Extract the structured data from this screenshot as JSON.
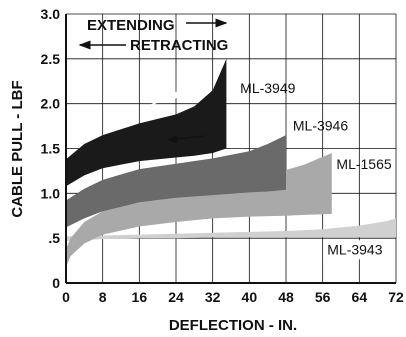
{
  "chart_data": {
    "type": "area",
    "title": "",
    "xlabel": "DEFLECTION - IN.",
    "ylabel": "CABLE PULL - LBF",
    "xlim": [
      0,
      72
    ],
    "ylim": [
      0,
      3.0
    ],
    "x_ticks": [
      0,
      8,
      16,
      24,
      32,
      40,
      48,
      56,
      64,
      72
    ],
    "x_tick_labels": [
      "0",
      "8",
      "16",
      "24",
      "32",
      "40",
      "48",
      "56",
      "64",
      "72"
    ],
    "y_ticks": [
      0,
      0.5,
      1.0,
      1.5,
      2.0,
      2.5,
      3.0
    ],
    "y_tick_labels": [
      "0",
      ".5",
      "1.0",
      "1.5",
      "2.0",
      "2.5",
      "3.0"
    ],
    "grid": true,
    "legend": "direct labels",
    "annotations": [
      "EXTENDING",
      "RETRACTING"
    ],
    "series": [
      {
        "name": "ML-3943",
        "color": "#d0d0d0",
        "x": [
          0,
          8,
          16,
          24,
          32,
          40,
          48,
          56,
          64,
          70,
          72
        ],
        "upper": [
          0.52,
          0.53,
          0.54,
          0.55,
          0.56,
          0.57,
          0.58,
          0.6,
          0.64,
          0.69,
          0.72
        ],
        "lower": [
          0.47,
          0.49,
          0.5,
          0.5,
          0.51,
          0.51,
          0.51,
          0.51,
          0.51,
          0.51,
          0.51
        ]
      },
      {
        "name": "ML-1565",
        "color": "#a9a9a9",
        "x": [
          0,
          1,
          4,
          8,
          16,
          24,
          32,
          40,
          48,
          52,
          58
        ],
        "upper": [
          0.38,
          0.5,
          0.68,
          0.8,
          0.95,
          1.03,
          1.1,
          1.17,
          1.26,
          1.32,
          1.45
        ],
        "lower": [
          0.18,
          0.3,
          0.44,
          0.54,
          0.63,
          0.68,
          0.72,
          0.74,
          0.75,
          0.76,
          0.77
        ]
      },
      {
        "name": "ML-3946",
        "color": "#6a6a6a",
        "x": [
          0,
          4,
          8,
          16,
          24,
          32,
          40,
          44,
          48
        ],
        "upper": [
          0.92,
          1.05,
          1.15,
          1.27,
          1.33,
          1.39,
          1.47,
          1.55,
          1.65
        ],
        "lower": [
          0.62,
          0.72,
          0.8,
          0.9,
          0.95,
          0.98,
          1.01,
          1.02,
          1.04
        ]
      },
      {
        "name": "ML-3949",
        "color": "#1a1a1a",
        "x": [
          0,
          4,
          8,
          16,
          24,
          28,
          32,
          35
        ],
        "upper": [
          1.38,
          1.55,
          1.65,
          1.78,
          1.88,
          1.97,
          2.15,
          2.5
        ],
        "lower": [
          1.08,
          1.2,
          1.28,
          1.36,
          1.4,
          1.42,
          1.45,
          1.5
        ]
      }
    ]
  }
}
